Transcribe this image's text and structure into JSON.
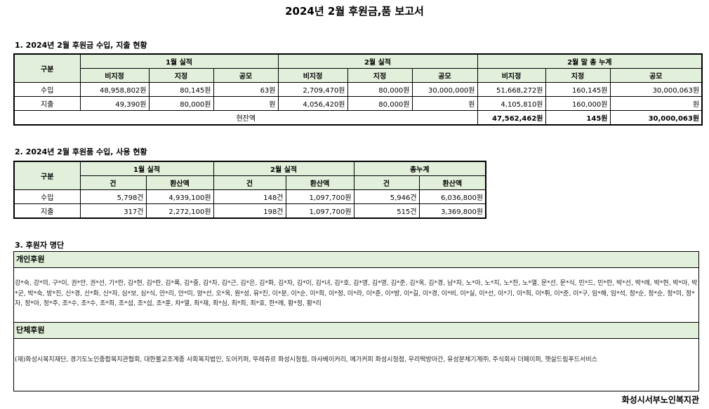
{
  "title": "2024년 2월 후원금,품 보고서",
  "section1": {
    "heading": "1. 2024년 2월 후원금 수입, 지출 현황",
    "col_group": "구분",
    "groups": [
      "1월 실적",
      "2월 실적",
      "2월 말 총 누계"
    ],
    "subheaders": [
      "비지정",
      "지정",
      "공모",
      "비지정",
      "지정",
      "공모",
      "비지정",
      "지정",
      "공모"
    ],
    "rows": [
      {
        "label": "수입",
        "cells": [
          "48,958,802원",
          "80,145원",
          "63원",
          "2,709,470원",
          "80,000원",
          "30,000,000원",
          "51,668,272원",
          "160,145원",
          "30,000,063원"
        ]
      },
      {
        "label": "지출",
        "cells": [
          "49,390원",
          "80,000원",
          "원",
          "4,056,420원",
          "80,000원",
          "원",
          "4,105,810원",
          "160,000원",
          "원"
        ]
      }
    ],
    "balance": {
      "label": "현잔액",
      "cells": [
        "47,562,462원",
        "145원",
        "30,000,063원"
      ]
    }
  },
  "section2": {
    "heading": "2. 2024년 2월 후원품 수입, 사용 현황",
    "col_group": "구분",
    "groups": [
      "1월 실적",
      "2월 실적",
      "총누계"
    ],
    "subheaders": [
      "건",
      "환산액",
      "건",
      "환산액",
      "건",
      "환산액"
    ],
    "rows": [
      {
        "label": "수입",
        "cells": [
          "5,798건",
          "4,939,100원",
          "148건",
          "1,097,700원",
          "5,946건",
          "6,036,800원"
        ]
      },
      {
        "label": "지출",
        "cells": [
          "317건",
          "2,272,100원",
          "198건",
          "1,097,700원",
          "515건",
          "3,369,800원"
        ]
      }
    ]
  },
  "section3": {
    "heading": "3. 후원자 명단",
    "individual_label": "개인후원",
    "individual_text": "강*숙, 강*의, 구*이, 권*안, 권*선, 기*란, 김*현, 김*란, 김*록, 김*중, 김*자, 김*근, 김*은, 김*화, 김*자, 김*이, 김*녀, 김*호, 김*영, 김*영, 김*준, 김*옥, 김*경, 남*자, 노*아, 노*지, 노*찬, 노*열, 문*선, 문*식, 민*드, 민*란, 박*선, 박*례, 박*현, 박*아, 박*군, 박*숙, 방*진, 신*경, 신*화, 신*자, 심*보, 심*식, 안*리, 안*미, 양*선, 오*옥, 원*성, 유*진, 이*분, 이*순, 이*희, 이*정, 이*라, 이*춘, 이*방, 이*길, 이*경, 이*비, 이*실, 이*선, 이*기, 이*희, 이*휘, 이*준, 이*구, 임*해, 임*석, 정*순, 정*순, 정*미, 정*자, 정*아, 정*주, 조*수, 조*수, 조*희, 조*섭, 조*섭, 조*훈, 차*열, 최*재, 최*심, 최*희, 최*호, 한*례, 황*정, 황*리",
    "group_label": "단체후원",
    "group_text": "(재)화성시복지재단, 경기도노인종합복지관협회, 대한불교조계종 사회복지법인, 도어키퍼, 뚜레쥬르 화성시청점, 마사베이커리, 메가커피 화성시청점, 우리떡방아간, 유성분체기계㈜, 주식회사 더페이퍼, 햇살드림푸드서비스"
  },
  "footer": "화성시서부노인복지관"
}
